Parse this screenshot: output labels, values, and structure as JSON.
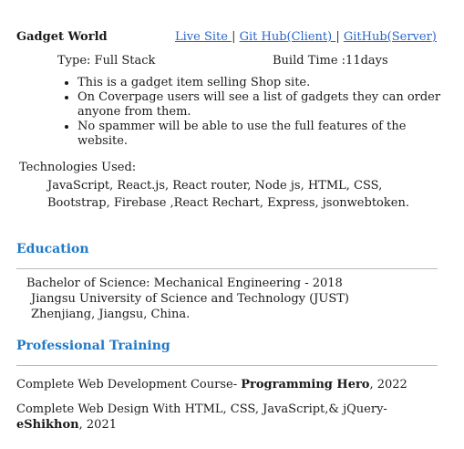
{
  "project": {
    "title": "Gadget World",
    "links": {
      "live": "Live Site ",
      "sep1": "| ",
      "client": "Git Hub(Client) ",
      "sep2": " | ",
      "server": "GitHub(Server)"
    },
    "type": "Type: Full Stack",
    "build_time": "Build Time :11days",
    "bullets": [
      "This is a  gadget item selling Shop site.",
      "On Coverpage users will see a list of gadgets they can order anyone from them.",
      "No spammer will be able to use the full features of the website."
    ],
    "tech_label": "Technologies Used:",
    "tech_list": "JavaScript, React.js, React router, Node js, HTML, CSS, Bootstrap, Firebase ,React Rechart, Express, jsonwebtoken."
  },
  "education": {
    "title": "Education",
    "degree": "Bachelor of Science: Mechanical Engineering - 2018",
    "university": "Jiangsu University of Science and Technology (JUST)",
    "location": "Zhenjiang, Jiangsu, China."
  },
  "training": {
    "title": "Professional Training",
    "items": [
      {
        "prefix": "Complete Web Development Course- ",
        "provider": "Programming Hero",
        "suffix": ", 2022"
      },
      {
        "prefix": "Complete Web Design With HTML, CSS, JavaScript,& jQuery-",
        "provider": "eShikhon",
        "suffix": ", 2021"
      }
    ]
  }
}
